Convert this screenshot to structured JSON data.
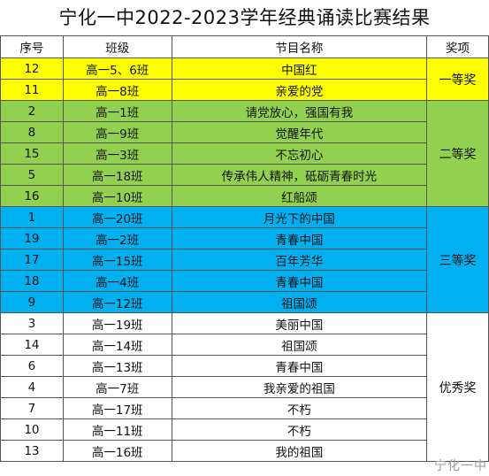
{
  "title": "宁化一中2022-2023学年经典诵读比赛结果",
  "headers": [
    "序号",
    "班级",
    "节目名称",
    "奖项"
  ],
  "colors": {
    "first": "#FFFF00",
    "second": "#92D050",
    "third": "#00B0F0",
    "excellent": "#FFFFFF"
  },
  "groups": [
    {
      "award": "一等奖",
      "color_key": "first",
      "rows": [
        {
          "no": "12",
          "cls": "高一5、6班",
          "program": "中国红"
        },
        {
          "no": "11",
          "cls": "高一8班",
          "program": "亲爱的党"
        }
      ]
    },
    {
      "award": "二等奖",
      "color_key": "second",
      "rows": [
        {
          "no": "2",
          "cls": "高一1班",
          "program": "请党放心，强国有我"
        },
        {
          "no": "8",
          "cls": "高一9班",
          "program": "觉醒年代"
        },
        {
          "no": "15",
          "cls": "高一3班",
          "program": "不忘初心"
        },
        {
          "no": "5",
          "cls": "高一18班",
          "program": "传承伟人精神，砥砺青春时光"
        },
        {
          "no": "16",
          "cls": "高一10班",
          "program": "红船颂"
        }
      ]
    },
    {
      "award": "三等奖",
      "color_key": "third",
      "rows": [
        {
          "no": "1",
          "cls": "高一20班",
          "program": "月光下的中国"
        },
        {
          "no": "19",
          "cls": "高一2班",
          "program": "青春中国"
        },
        {
          "no": "17",
          "cls": "高一15班",
          "program": "百年芳华"
        },
        {
          "no": "18",
          "cls": "高一4班",
          "program": "青春中国"
        },
        {
          "no": "9",
          "cls": "高一12班",
          "program": "祖国颂"
        }
      ]
    },
    {
      "award": "优秀奖",
      "color_key": "excellent",
      "rows": [
        {
          "no": "3",
          "cls": "高一19班",
          "program": "美丽中国"
        },
        {
          "no": "14",
          "cls": "高一14班",
          "program": "祖国颂"
        },
        {
          "no": "6",
          "cls": "高一13班",
          "program": "青春中国"
        },
        {
          "no": "4",
          "cls": "高一7班",
          "program": "我亲爱的祖国"
        },
        {
          "no": "7",
          "cls": "高一17班",
          "program": "不朽"
        },
        {
          "no": "10",
          "cls": "高一11班",
          "program": "不朽"
        },
        {
          "no": "13",
          "cls": "高一16班",
          "program": "我的祖国"
        }
      ]
    }
  ],
  "watermark": "宁化一中"
}
